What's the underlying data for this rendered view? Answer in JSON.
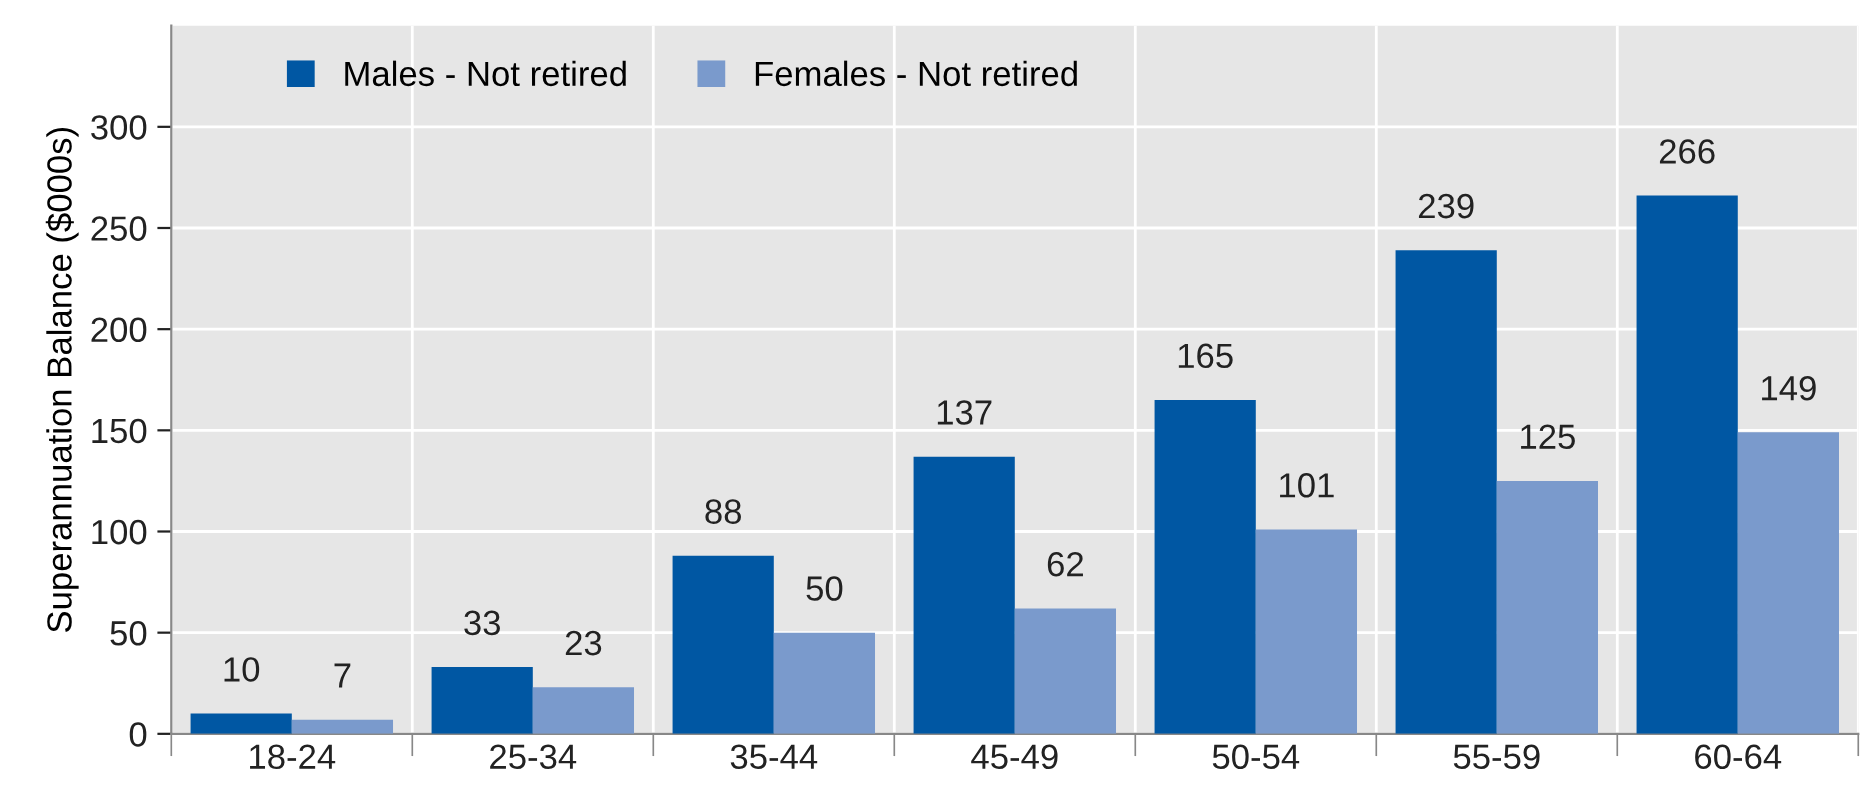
{
  "chart_data": {
    "type": "bar",
    "ylabel": "Superannuation Balance ($000s)",
    "categories": [
      "18-24",
      "25-34",
      "35-44",
      "45-49",
      "50-54",
      "55-59",
      "60-64"
    ],
    "series": [
      {
        "name": "Males - Not retired",
        "color": "#0057a3",
        "values": [
          10,
          33,
          88,
          137,
          165,
          239,
          266
        ]
      },
      {
        "name": "Females - Not retired",
        "color": "#7a9acc",
        "values": [
          7,
          23,
          50,
          62,
          101,
          125,
          149
        ]
      }
    ],
    "ylim": [
      0,
      350
    ],
    "yticks": [
      0,
      50,
      100,
      150,
      200,
      250,
      300
    ],
    "grid": true,
    "legend": "top left",
    "data_labels": true
  }
}
